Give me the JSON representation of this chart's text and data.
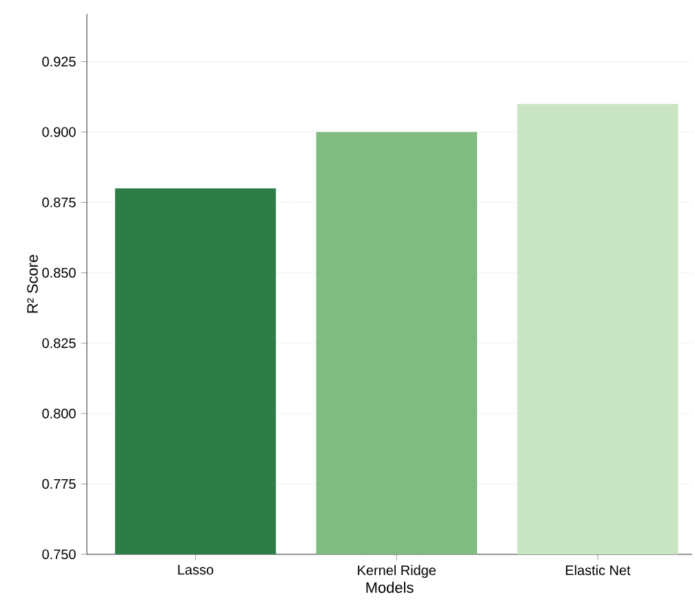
{
  "chart_data": {
    "type": "bar",
    "xlabel": "Models",
    "ylabel": "R² Score",
    "categories": [
      "Lasso",
      "Kernel Ridge",
      "Elastic Net"
    ],
    "values": [
      0.88,
      0.9,
      0.91
    ],
    "colors": [
      "#2e7d48",
      "#80bb80",
      "#c9e5c3"
    ],
    "ylim": [
      0.75,
      0.942
    ],
    "yticks": [
      {
        "value": 0.75,
        "label": "0.750"
      },
      0.775,
      {
        "value": 0.8,
        "label": "0.800"
      },
      0.825,
      {
        "value": 0.85,
        "label": "0.850"
      },
      0.875,
      {
        "value": 0.9,
        "label": "0.900"
      },
      0.925
    ],
    "grid": "y"
  }
}
